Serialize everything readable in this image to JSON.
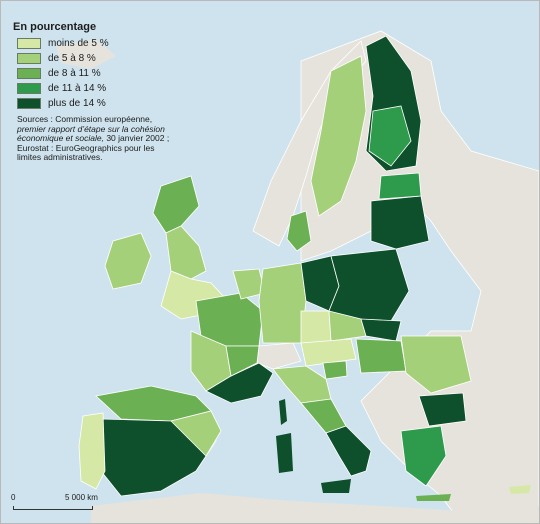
{
  "legend": {
    "title": "En pourcentage",
    "items": [
      {
        "label": "moins de 5 %",
        "color": "#d6e8a6"
      },
      {
        "label": "de 5 à 8 %",
        "color": "#a5d07a"
      },
      {
        "label": "de 8 à 11 %",
        "color": "#6bb153"
      },
      {
        "label": "de 11 à 14 %",
        "color": "#2e9a4b"
      },
      {
        "label": "plus de 14 %",
        "color": "#0e4f2c"
      }
    ]
  },
  "sources": {
    "prefix": "Sources : Commission européenne,",
    "italic": "premier rapport d’étape sur la cohésion économique et sociale,",
    "suffix": "30 janvier 2002 ; Eurostat : EuroGeographics pour les limites administratives."
  },
  "scale": {
    "zero": "0",
    "distance": "5 000 km"
  },
  "colors": {
    "sea": "#cfe3ee",
    "non_eu": "#e6e3dc",
    "border": "#ffffff"
  }
}
